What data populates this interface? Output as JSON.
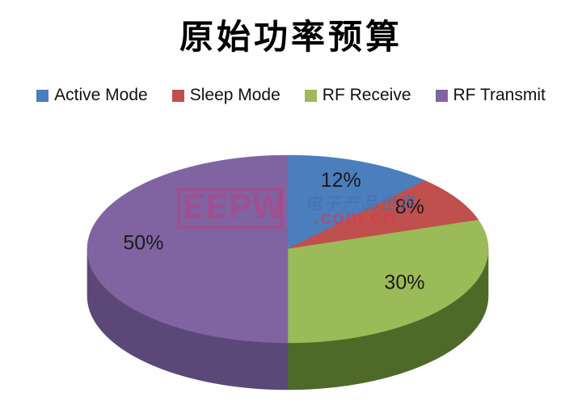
{
  "title": "原始功率预算",
  "legend": {
    "items": [
      {
        "label": "Active Mode",
        "color": "#4B7EBD"
      },
      {
        "label": "Sleep Mode",
        "color": "#C0504D"
      },
      {
        "label": "RF Receive",
        "color": "#9BBB59"
      },
      {
        "label": "RF Transmit",
        "color": "#8064A2"
      }
    ]
  },
  "watermark": {
    "logo": "EEPW",
    "site_name": "电子产品世界",
    "domain": ".com.cn"
  },
  "chart_data": {
    "type": "pie",
    "style": "3d",
    "title": "原始功率预算",
    "categories": [
      "Active Mode",
      "Sleep Mode",
      "RF Receive",
      "RF Transmit"
    ],
    "values": [
      12,
      8,
      30,
      50
    ],
    "labels": [
      "12%",
      "8%",
      "30%",
      "50%"
    ],
    "colors": [
      "#4B7EBD",
      "#C0504D",
      "#9BBB59",
      "#8064A2"
    ],
    "side_colors": [
      "#35587F",
      "#8A3936",
      "#4F6A28",
      "#5B4878"
    ],
    "start_angle_deg": 0,
    "direction": "clockwise",
    "label_color": "#1a1a1a",
    "legend_position": "top"
  }
}
